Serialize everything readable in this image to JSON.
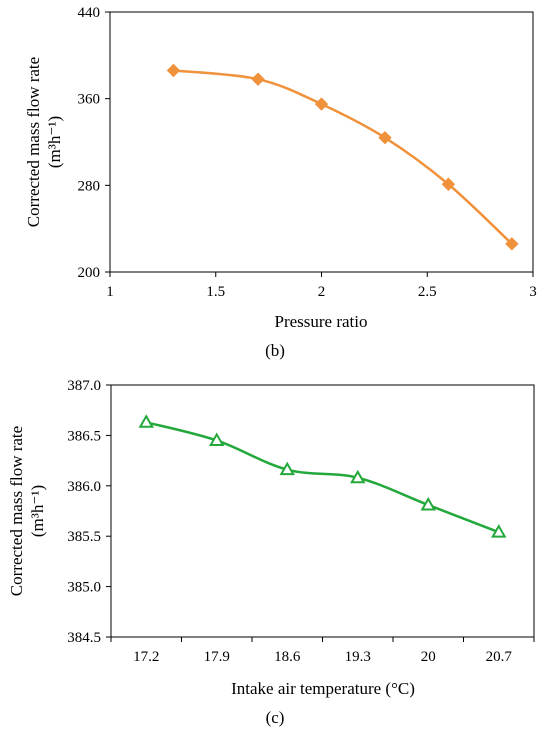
{
  "chart_data": [
    {
      "type": "line",
      "panel_label": "(b)",
      "xlabel": "Pressure ratio",
      "ylabel": "Corrected mass flow rate",
      "yunit": "(m³h⁻¹)",
      "xlim": [
        1,
        3
      ],
      "ylim": [
        200,
        440
      ],
      "xticks": [
        "1",
        "1.5",
        "2",
        "2.5",
        "3"
      ],
      "yticks": [
        "200",
        "280",
        "360",
        "440"
      ],
      "x": [
        1.3,
        1.7,
        2.0,
        2.3,
        2.6,
        2.9
      ],
      "series": [
        {
          "values": [
            386,
            378,
            355,
            324,
            281,
            226
          ],
          "color": "#f0923c",
          "marker": "diamond"
        }
      ],
      "grid": false
    },
    {
      "type": "line",
      "panel_label": "(c)",
      "xlabel": "Intake air temperature (°C)",
      "ylabel": "Corrected mass flow rate",
      "yunit": "(m³h⁻¹)",
      "categories": [
        "17.2",
        "17.9",
        "18.6",
        "19.3",
        "20",
        "20.7"
      ],
      "ylim": [
        384.5,
        387.0
      ],
      "yticks": [
        "384.5",
        "385.0",
        "385.5",
        "386.0",
        "386.5",
        "387.0"
      ],
      "series": [
        {
          "values": [
            386.63,
            386.45,
            386.16,
            386.08,
            385.81,
            385.54
          ],
          "color": "#23a83c",
          "marker": "triangle"
        }
      ],
      "grid": false
    }
  ]
}
